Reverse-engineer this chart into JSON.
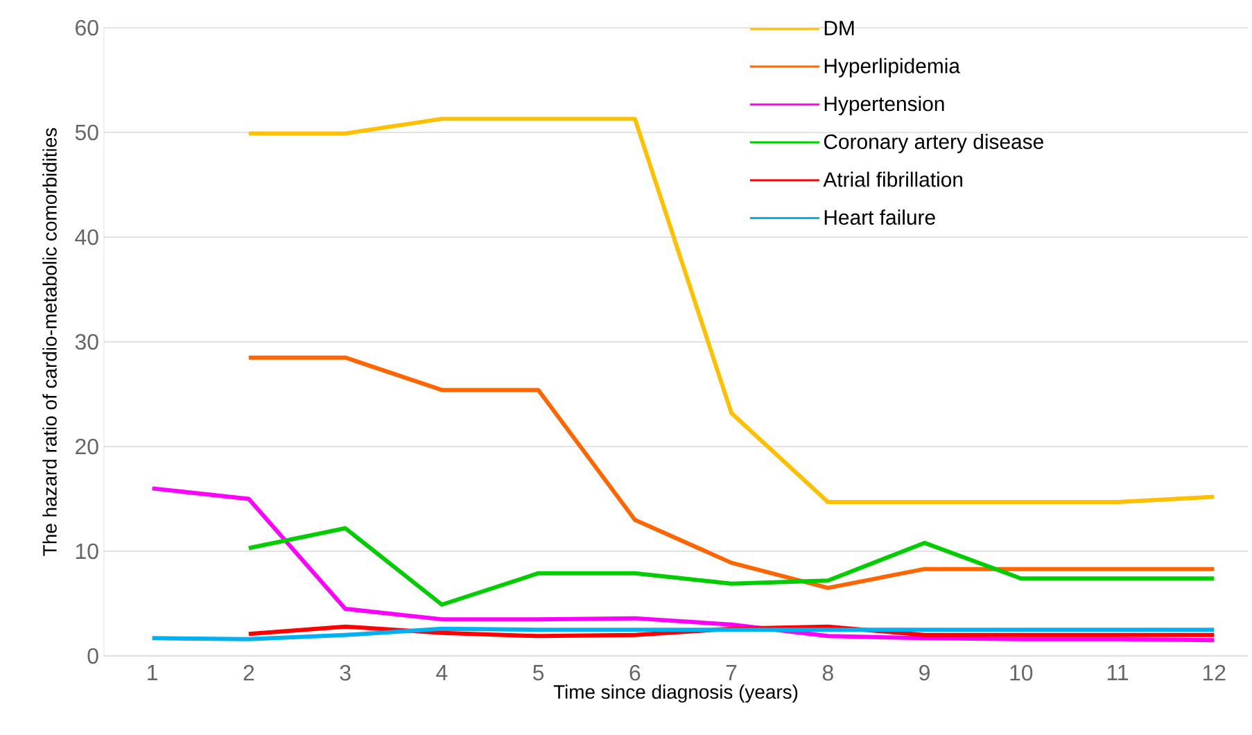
{
  "chart_data": {
    "type": "line",
    "xlabel": "Time since diagnosis  (years)",
    "ylabel": "The hazard ratio of cardio-metabolic comorbidities",
    "categories": [
      "1",
      "2",
      "3",
      "4",
      "5",
      "6",
      "7",
      "8",
      "9",
      "10",
      "11",
      "12"
    ],
    "series": [
      {
        "name": "DM",
        "color": "#ffc000",
        "values": [
          null,
          49.9,
          49.9,
          51.3,
          51.3,
          51.3,
          23.2,
          14.7,
          14.7,
          14.7,
          14.7,
          15.2
        ]
      },
      {
        "name": "Hyperlipidemia",
        "color": "#ff6600",
        "values": [
          null,
          28.5,
          28.5,
          25.4,
          25.4,
          13.0,
          8.9,
          6.5,
          8.3,
          8.3,
          8.3,
          8.3
        ]
      },
      {
        "name": "Hypertension",
        "color": "#ff00ff",
        "values": [
          16.0,
          15.0,
          4.5,
          3.5,
          3.5,
          3.6,
          3.0,
          1.9,
          1.7,
          1.6,
          1.6,
          1.5
        ]
      },
      {
        "name": "Coronary artery disease",
        "color": "#00cc00",
        "values": [
          null,
          10.3,
          12.2,
          4.9,
          7.9,
          7.9,
          6.9,
          7.2,
          10.8,
          7.4,
          7.4,
          7.4
        ]
      },
      {
        "name": "Atrial fibrillation",
        "color": "#ff0000",
        "values": [
          null,
          2.1,
          2.8,
          2.2,
          1.9,
          2.0,
          2.6,
          2.8,
          2.0,
          2.0,
          2.0,
          2.0
        ]
      },
      {
        "name": "Heart failure",
        "color": "#00b0f0",
        "values": [
          1.7,
          1.6,
          2.0,
          2.6,
          2.5,
          2.5,
          2.5,
          2.5,
          2.5,
          2.5,
          2.5,
          2.5
        ]
      }
    ],
    "ylim": [
      0,
      60
    ],
    "yticks": [
      0,
      10,
      20,
      30,
      40,
      50,
      60
    ],
    "grid": "y",
    "legend": "top right",
    "marker": "none",
    "line_style": "solid"
  }
}
